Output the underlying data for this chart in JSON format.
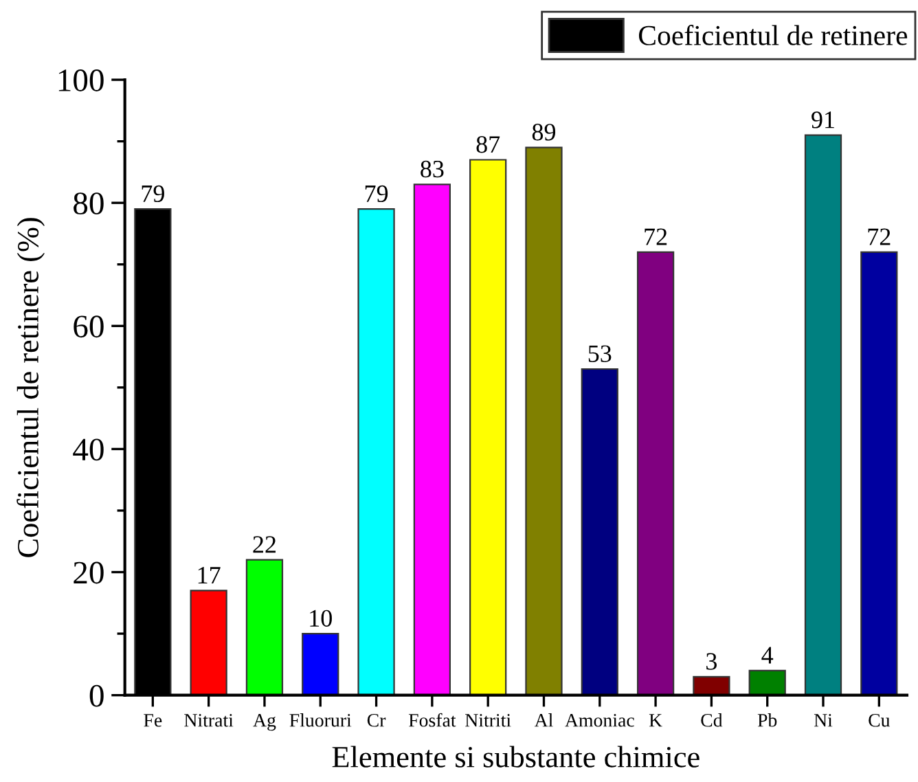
{
  "chart_data": {
    "type": "bar",
    "xlabel": "Elemente si substante chimice",
    "ylabel": "Coeficientul de retinere (%)",
    "categories": [
      "Fe",
      "Nitrati",
      "Ag",
      "Fluoruri",
      "Cr",
      "Fosfat",
      "Nitriti",
      "Al",
      "Amoniac",
      "K",
      "Cd",
      "Pb",
      "Ni",
      "Cu"
    ],
    "series": [
      {
        "name": "Coeficientul de retinere",
        "colors": [
          "#000000",
          "#ff0000",
          "#00ff00",
          "#0000ff",
          "#00ffff",
          "#ff00ff",
          "#ffff00",
          "#808000",
          "#000080",
          "#800080",
          "#800000",
          "#008000",
          "#008080",
          "#0000a0"
        ],
        "values": [
          79,
          17,
          22,
          10,
          79,
          83,
          87,
          89,
          53,
          72,
          3,
          4,
          91,
          72
        ]
      }
    ],
    "ylim": [
      0,
      100
    ],
    "yticks": [
      0,
      {
        "value": 10,
        "label": null
      },
      20,
      {
        "value": 30,
        "label": null
      },
      40,
      {
        "value": 50,
        "label": null
      },
      60,
      {
        "value": 70,
        "label": null
      },
      80,
      {
        "value": 90,
        "label": null
      },
      100
    ],
    "data_labels": true,
    "legend": "top right",
    "grid": false
  }
}
